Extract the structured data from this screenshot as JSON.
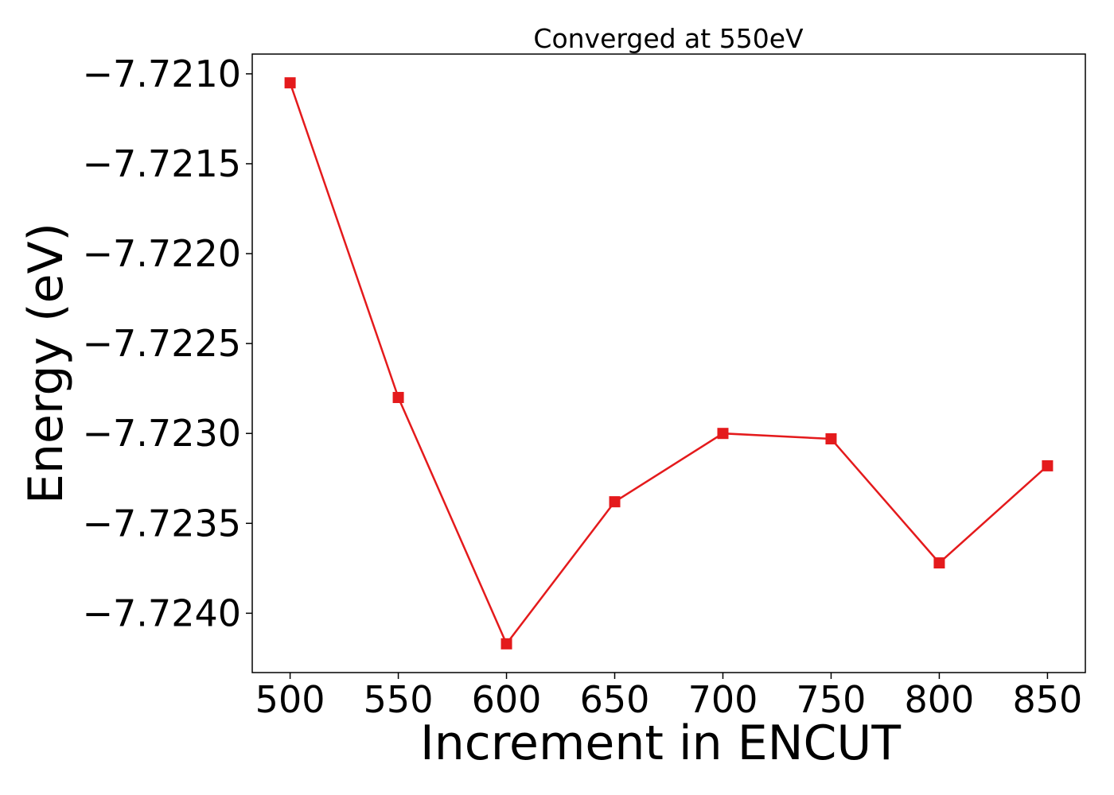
{
  "chart_data": {
    "type": "line",
    "title": "Converged at 550eV",
    "xlabel": "Increment in ENCUT",
    "ylabel": "Energy (eV)",
    "x": [
      500,
      550,
      600,
      650,
      700,
      750,
      800,
      850
    ],
    "series": [
      {
        "values": [
          -7.72105,
          -7.7228,
          -7.72417,
          -7.72338,
          -7.723,
          -7.72303,
          -7.72372,
          -7.72318
        ],
        "color": "#e41a1c",
        "marker": "square"
      }
    ],
    "xticks": [
      500,
      550,
      600,
      650,
      700,
      750,
      800,
      850
    ],
    "xtick_labels": [
      "500",
      "550",
      "600",
      "650",
      "700",
      "750",
      "800",
      "850"
    ],
    "yticks": [
      -7.721,
      -7.7215,
      -7.722,
      -7.7225,
      -7.723,
      -7.7235,
      -7.724
    ],
    "ytick_labels": [
      "−7.7210",
      "−7.7215",
      "−7.7220",
      "−7.7225",
      "−7.7230",
      "−7.7235",
      "−7.7240"
    ],
    "xlim": [
      482.5,
      867.5
    ],
    "ylim": [
      -7.72433,
      -7.72089
    ],
    "grid": false,
    "legend": false
  }
}
